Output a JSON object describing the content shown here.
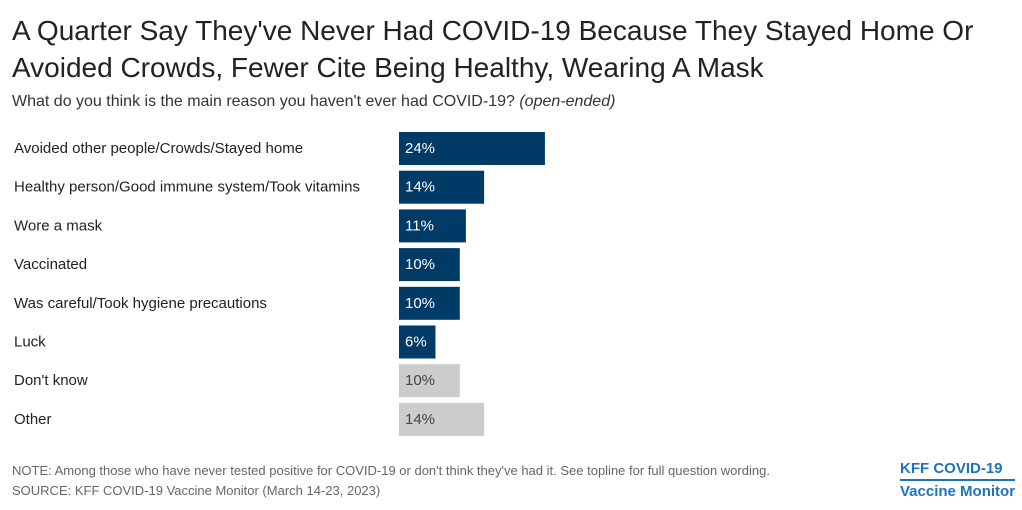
{
  "title": "A Quarter Say They've Never Had COVID-19 Because They Stayed Home Or Avoided Crowds, Fewer Cite Being Healthy, Wearing A Mask",
  "subtitle": {
    "question": "What do you think is the main reason you haven't ever had COVID-19?",
    "qualifier": "(open-ended)"
  },
  "chart_data": {
    "type": "bar",
    "orientation": "horizontal",
    "categories": [
      "Avoided other people/Crowds/Stayed home",
      "Healthy person/Good immune system/Took vitamins",
      "Wore a mask",
      "Vaccinated",
      "Was careful/Took hygiene precautions",
      "Luck",
      "Don't know",
      "Other"
    ],
    "values": [
      24,
      14,
      11,
      10,
      10,
      6,
      10,
      14
    ],
    "labels": [
      "24%",
      "14%",
      "11%",
      "10%",
      "10%",
      "6%",
      "10%",
      "14%"
    ],
    "bar_colors": [
      "#003A66",
      "#003A66",
      "#003A66",
      "#003A66",
      "#003A66",
      "#003A66",
      "#CCCCCC",
      "#CCCCCC"
    ],
    "label_colors": [
      "#FFFFFF",
      "#FFFFFF",
      "#FFFFFF",
      "#FFFFFF",
      "#FFFFFF",
      "#FFFFFF",
      "#444444",
      "#444444"
    ],
    "xlim": [
      0,
      100
    ],
    "grid": false,
    "legend": "none"
  },
  "footer": {
    "note": "NOTE: Among those who have never tested positive for COVID-19 or don't think they've had it. See topline for full question wording.",
    "source": "SOURCE: KFF COVID-19 Vaccine Monitor (March 14-23, 2023)"
  },
  "logo": {
    "line1": "KFF COVID-19",
    "line2": "Vaccine Monitor",
    "color": "#1E73BE"
  }
}
